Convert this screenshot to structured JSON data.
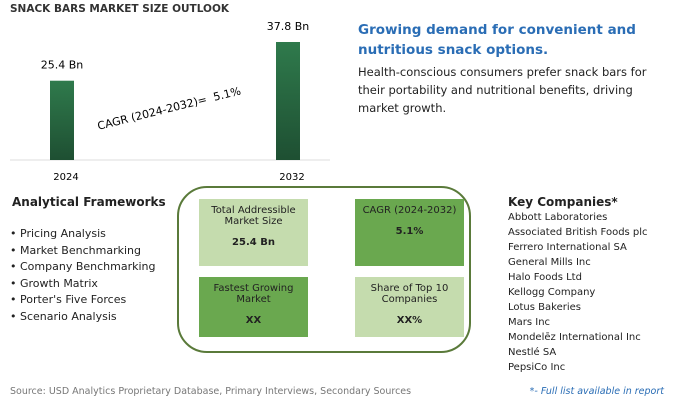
{
  "chart_data": {
    "type": "bar",
    "title": "SNACK BARS MARKET SIZE OUTLOOK",
    "categories": [
      "2024",
      "2032"
    ],
    "values": [
      25.4,
      37.8
    ],
    "value_labels": [
      "25.4 Bn",
      "37.8 Bn"
    ],
    "color": "#2f7a4c",
    "annotation": "CAGR (2024-2032)=  5.1%"
  },
  "headline": "Growing demand for convenient and nutritious snack options.",
  "description": "Health-conscious consumers prefer snack bars for their portability and nutritional benefits, driving market growth.",
  "frameworks": {
    "title": "Analytical Frameworks",
    "items": [
      "Pricing Analysis",
      "Market Benchmarking",
      "Company Benchmarking",
      "Growth Matrix",
      "Porter's Five Forces",
      "Scenario Analysis"
    ]
  },
  "boxes": [
    {
      "label": "Total Addressible Market Size",
      "value": "25.4 Bn"
    },
    {
      "label": "CAGR (2024-2032)",
      "value": "5.1%"
    },
    {
      "label": "Fastest Growing Market",
      "value": "XX"
    },
    {
      "label": "Share of Top 10 Companies",
      "value": "XX%"
    }
  ],
  "companies": {
    "title": "Key Companies*",
    "items": [
      "Abbott Laboratories",
      "Associated British Foods plc",
      "Ferrero International SA",
      "General Mills Inc",
      "Halo Foods Ltd",
      "Kellogg Company",
      "Lotus Bakeries",
      "Mars Inc",
      "Mondelēz International Inc",
      "Nestlé SA",
      "PepsiCo Inc"
    ]
  },
  "source": "Source: USD Analytics Proprietary Database, Primary Interviews, Secondary Sources",
  "footnote": "*- Full list available in report"
}
